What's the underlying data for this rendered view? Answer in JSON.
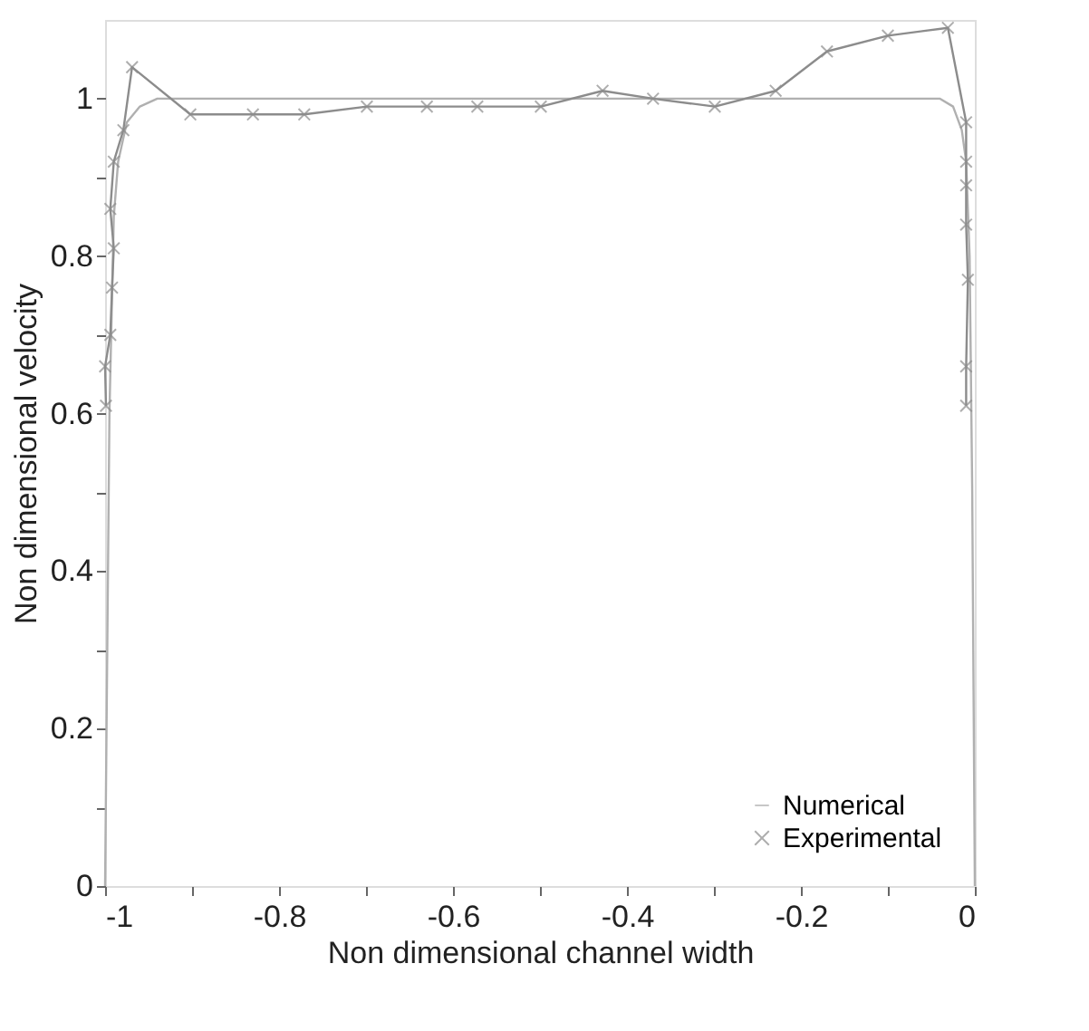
{
  "chart_data": {
    "type": "line",
    "xlabel": "Non dimensional channel width",
    "ylabel": "Non dimensional velocity",
    "xlim": [
      -1,
      0
    ],
    "ylim": [
      0,
      1.1
    ],
    "xticks": [
      -1,
      {
        "value": -0.9,
        "label": null
      },
      -0.8,
      {
        "value": -0.7,
        "label": null
      },
      -0.6,
      {
        "value": -0.5,
        "label": null
      },
      -0.4,
      {
        "value": -0.3,
        "label": null
      },
      -0.2,
      {
        "value": -0.1,
        "label": null
      },
      0
    ],
    "yticks": [
      0,
      {
        "value": 0.1,
        "label": null
      },
      0.2,
      {
        "value": 0.3,
        "label": null
      },
      0.4,
      {
        "value": 0.5,
        "label": null
      },
      0.6,
      {
        "value": 0.7,
        "label": null
      },
      0.8,
      {
        "value": 0.9,
        "label": null
      },
      1
    ],
    "grid": false,
    "legend": "bottom right",
    "series": [
      {
        "name": "Numerical",
        "color": "#b0b0b0",
        "marker": "none",
        "line_style": "solid",
        "x": [
          -1,
          -0.995,
          -0.99,
          -0.985,
          -0.975,
          -0.96,
          -0.94,
          -0.04,
          -0.025,
          -0.015,
          -0.01,
          -0.006,
          -0.003,
          0
        ],
        "values": [
          0,
          0.6,
          0.85,
          0.92,
          0.97,
          0.99,
          1.0,
          1.0,
          0.99,
          0.96,
          0.92,
          0.8,
          0.5,
          0
        ]
      },
      {
        "name": "Experimental",
        "color": "#8c8c8c",
        "marker": "cross",
        "line_style": "solid",
        "x": [
          -0.999,
          -1.0,
          -0.994,
          -0.992,
          -0.99,
          -0.994,
          -0.99,
          -0.979,
          -0.969,
          -0.902,
          -0.83,
          -0.771,
          -0.699,
          -0.63,
          -0.572,
          -0.499,
          -0.428,
          -0.37,
          -0.299,
          -0.229,
          -0.17,
          -0.1,
          -0.031,
          -0.01,
          -0.01,
          -0.01,
          -0.01,
          -0.008,
          -0.01,
          -0.01
        ],
        "values": [
          0.61,
          0.66,
          0.7,
          0.76,
          0.81,
          0.86,
          0.92,
          0.96,
          1.04,
          0.98,
          0.98,
          0.98,
          0.99,
          0.99,
          0.99,
          0.99,
          1.01,
          1.0,
          0.99,
          1.01,
          1.06,
          1.08,
          1.09,
          0.97,
          0.92,
          0.89,
          0.84,
          0.77,
          0.66,
          0.61
        ]
      }
    ]
  }
}
